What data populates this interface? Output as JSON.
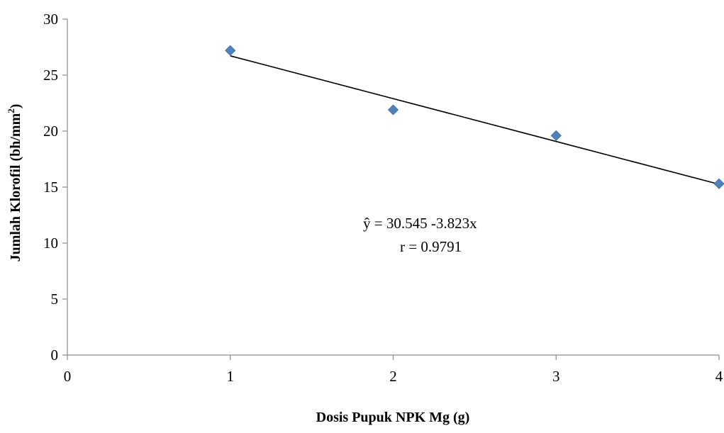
{
  "chart_data": {
    "type": "scatter",
    "xlabel": "Dosis Pupuk NPK Mg (g)",
    "ylabel_main": "Jumlah Klorofil (bh/mm",
    "ylabel_sup": "2",
    "ylabel_close": ")",
    "xlim": [
      0,
      4
    ],
    "ylim": [
      0,
      30
    ],
    "x_ticks": [
      "0",
      "1",
      "2",
      "3",
      "4"
    ],
    "y_ticks": [
      "0",
      "5",
      "10",
      "15",
      "20",
      "25",
      "30"
    ],
    "grid": false,
    "legend": "none",
    "marker_color": "#4f81bd",
    "trendline_color": "#000000",
    "points": [
      {
        "x": 1,
        "y": 27.2
      },
      {
        "x": 2,
        "y": 21.9
      },
      {
        "x": 3,
        "y": 19.6
      },
      {
        "x": 4,
        "y": 15.3
      }
    ],
    "trendline": {
      "intercept": 30.545,
      "slope": -3.823,
      "x_from": 1,
      "x_to": 4
    },
    "annotations": {
      "equation": "ŷ =  30.545 -3.823x",
      "correlation": "r = 0.9791"
    }
  }
}
